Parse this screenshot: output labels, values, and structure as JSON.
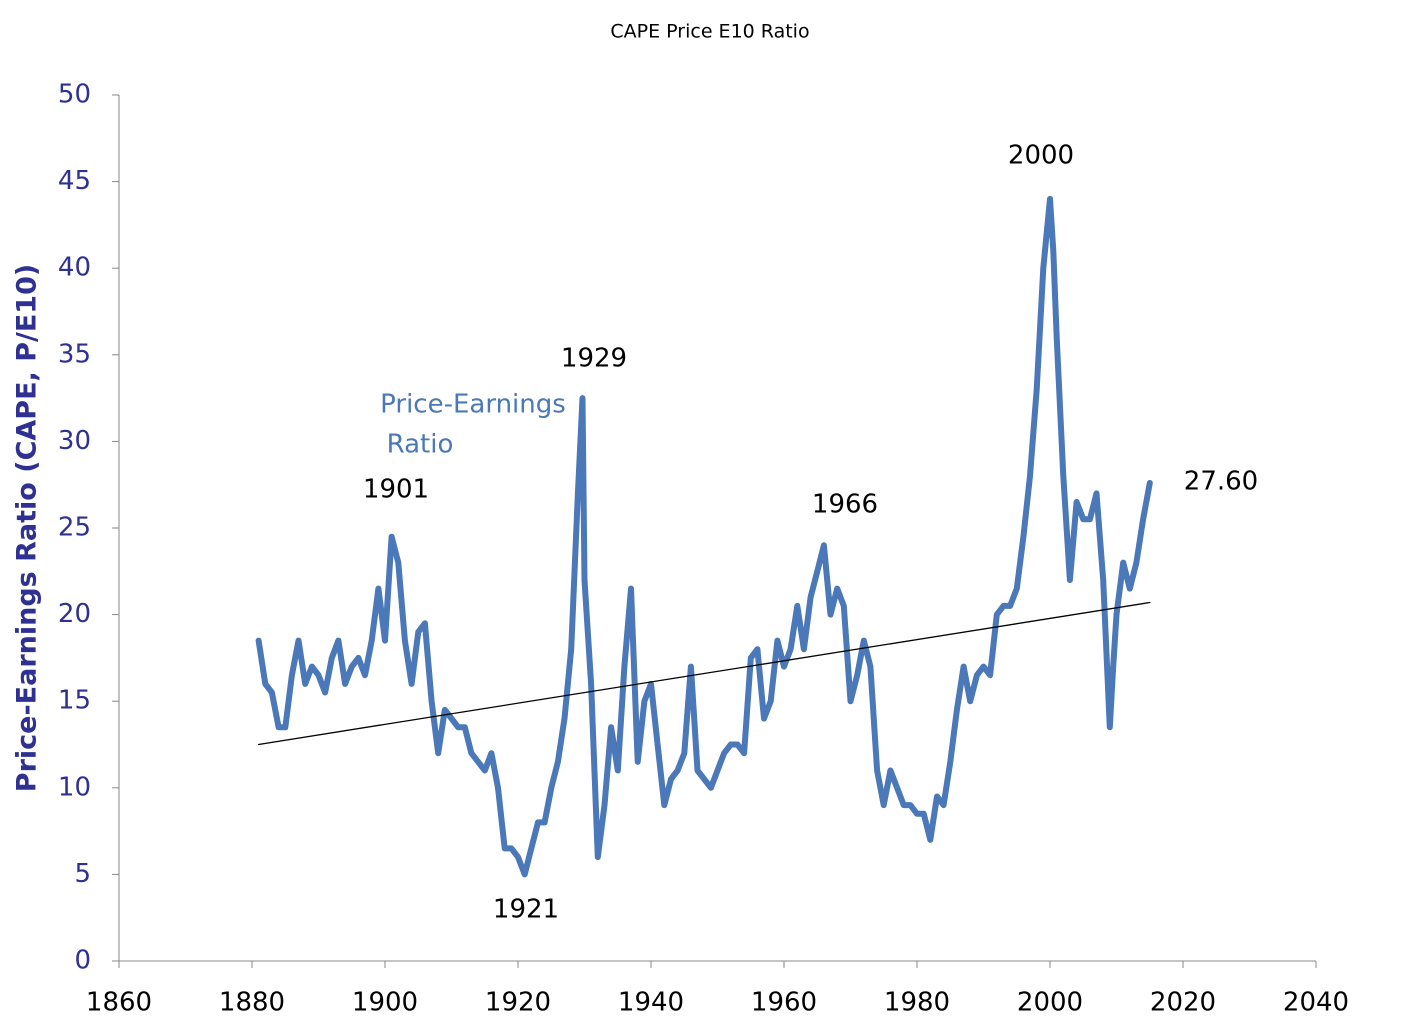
{
  "chart_data": {
    "type": "line",
    "title": "CAPE Price E10 Ratio",
    "y_label": "Price-Earnings Ratio (CAPE, P/E10)",
    "xlim": [
      1860,
      2040
    ],
    "xticks": [
      1860,
      1880,
      1900,
      1920,
      1940,
      1960,
      1980,
      2000,
      2020,
      2040
    ],
    "ylim": [
      0,
      50
    ],
    "yticks": [
      0,
      5,
      10,
      15,
      20,
      25,
      30,
      35,
      40,
      45,
      50
    ],
    "annotations": [
      "1901",
      "1921",
      "1929",
      "1966",
      "2000",
      "27.60",
      "Price-Earnings",
      "Ratio"
    ],
    "series": [
      {
        "color": "#4a78b8",
        "x": [
          1881,
          1882,
          1883,
          1884,
          1885,
          1886,
          1887,
          1888,
          1889,
          1890,
          1891,
          1892,
          1893,
          1894,
          1895,
          1896,
          1897,
          1898,
          1899,
          1900,
          1901,
          1902,
          1903,
          1904,
          1905,
          1906,
          1907,
          1908,
          1909,
          1910,
          1911,
          1912,
          1913,
          1914,
          1915,
          1916,
          1917,
          1918,
          1919,
          1920,
          1921,
          1922,
          1923,
          1924,
          1925,
          1926,
          1927,
          1928,
          1929,
          1929.7,
          1930,
          1931,
          1932,
          1933,
          1934,
          1935,
          1936,
          1937,
          1938,
          1939,
          1940,
          1941,
          1942,
          1943,
          1944,
          1945,
          1946,
          1947,
          1948,
          1949,
          1950,
          1951,
          1952,
          1953,
          1954,
          1955,
          1956,
          1957,
          1958,
          1959,
          1960,
          1961,
          1962,
          1963,
          1964,
          1965,
          1966,
          1967,
          1968,
          1969,
          1970,
          1971,
          1972,
          1973,
          1974,
          1975,
          1976,
          1977,
          1978,
          1979,
          1980,
          1981,
          1982,
          1983,
          1984,
          1985,
          1986,
          1987,
          1988,
          1989,
          1990,
          1991,
          1992,
          1993,
          1994,
          1995,
          1996,
          1997,
          1998,
          1999,
          2000,
          2000.5,
          2001,
          2002,
          2003,
          2004,
          2005,
          2006,
          2007,
          2008,
          2009,
          2009.5,
          2010,
          2011,
          2012,
          2013,
          2014,
          2015
        ],
        "values": [
          18.5,
          16,
          15.5,
          13.5,
          13.5,
          16.5,
          18.5,
          16,
          17,
          16.5,
          15.5,
          17.5,
          18.5,
          16,
          17,
          17.5,
          16.5,
          18.5,
          21.5,
          18.5,
          24.5,
          23,
          18.5,
          16,
          19,
          19.5,
          15,
          12,
          14.5,
          14,
          13.5,
          13.5,
          12,
          11.5,
          11,
          12,
          10,
          6.5,
          6.5,
          6,
          5,
          6.5,
          8,
          8,
          10,
          11.5,
          14,
          18,
          27,
          32.5,
          22,
          16,
          6,
          9,
          13.5,
          11,
          17,
          21.5,
          11.5,
          15,
          16,
          12.5,
          9,
          10.5,
          11,
          12,
          17,
          11,
          10.5,
          10,
          11,
          12,
          12.5,
          12.5,
          12,
          17.5,
          18,
          14,
          15,
          18.5,
          17,
          18,
          20.5,
          18,
          21,
          22.5,
          24,
          20,
          21.5,
          20.5,
          15,
          16.5,
          18.5,
          17,
          11,
          9,
          11,
          10,
          9,
          9,
          8.5,
          8.5,
          7,
          9.5,
          9,
          11.5,
          14.5,
          17,
          15,
          16.5,
          17,
          16.5,
          20,
          20.5,
          20.5,
          21.5,
          24.5,
          28,
          33,
          40,
          44,
          41,
          36,
          28,
          22,
          26.5,
          25.5,
          25.5,
          27,
          22,
          13.5,
          17,
          20,
          23,
          21.5,
          23,
          25.5,
          27.6
        ]
      },
      {
        "color": "#000000",
        "x": [
          1881,
          2015
        ],
        "values": [
          12.5,
          20.7
        ]
      }
    ]
  }
}
